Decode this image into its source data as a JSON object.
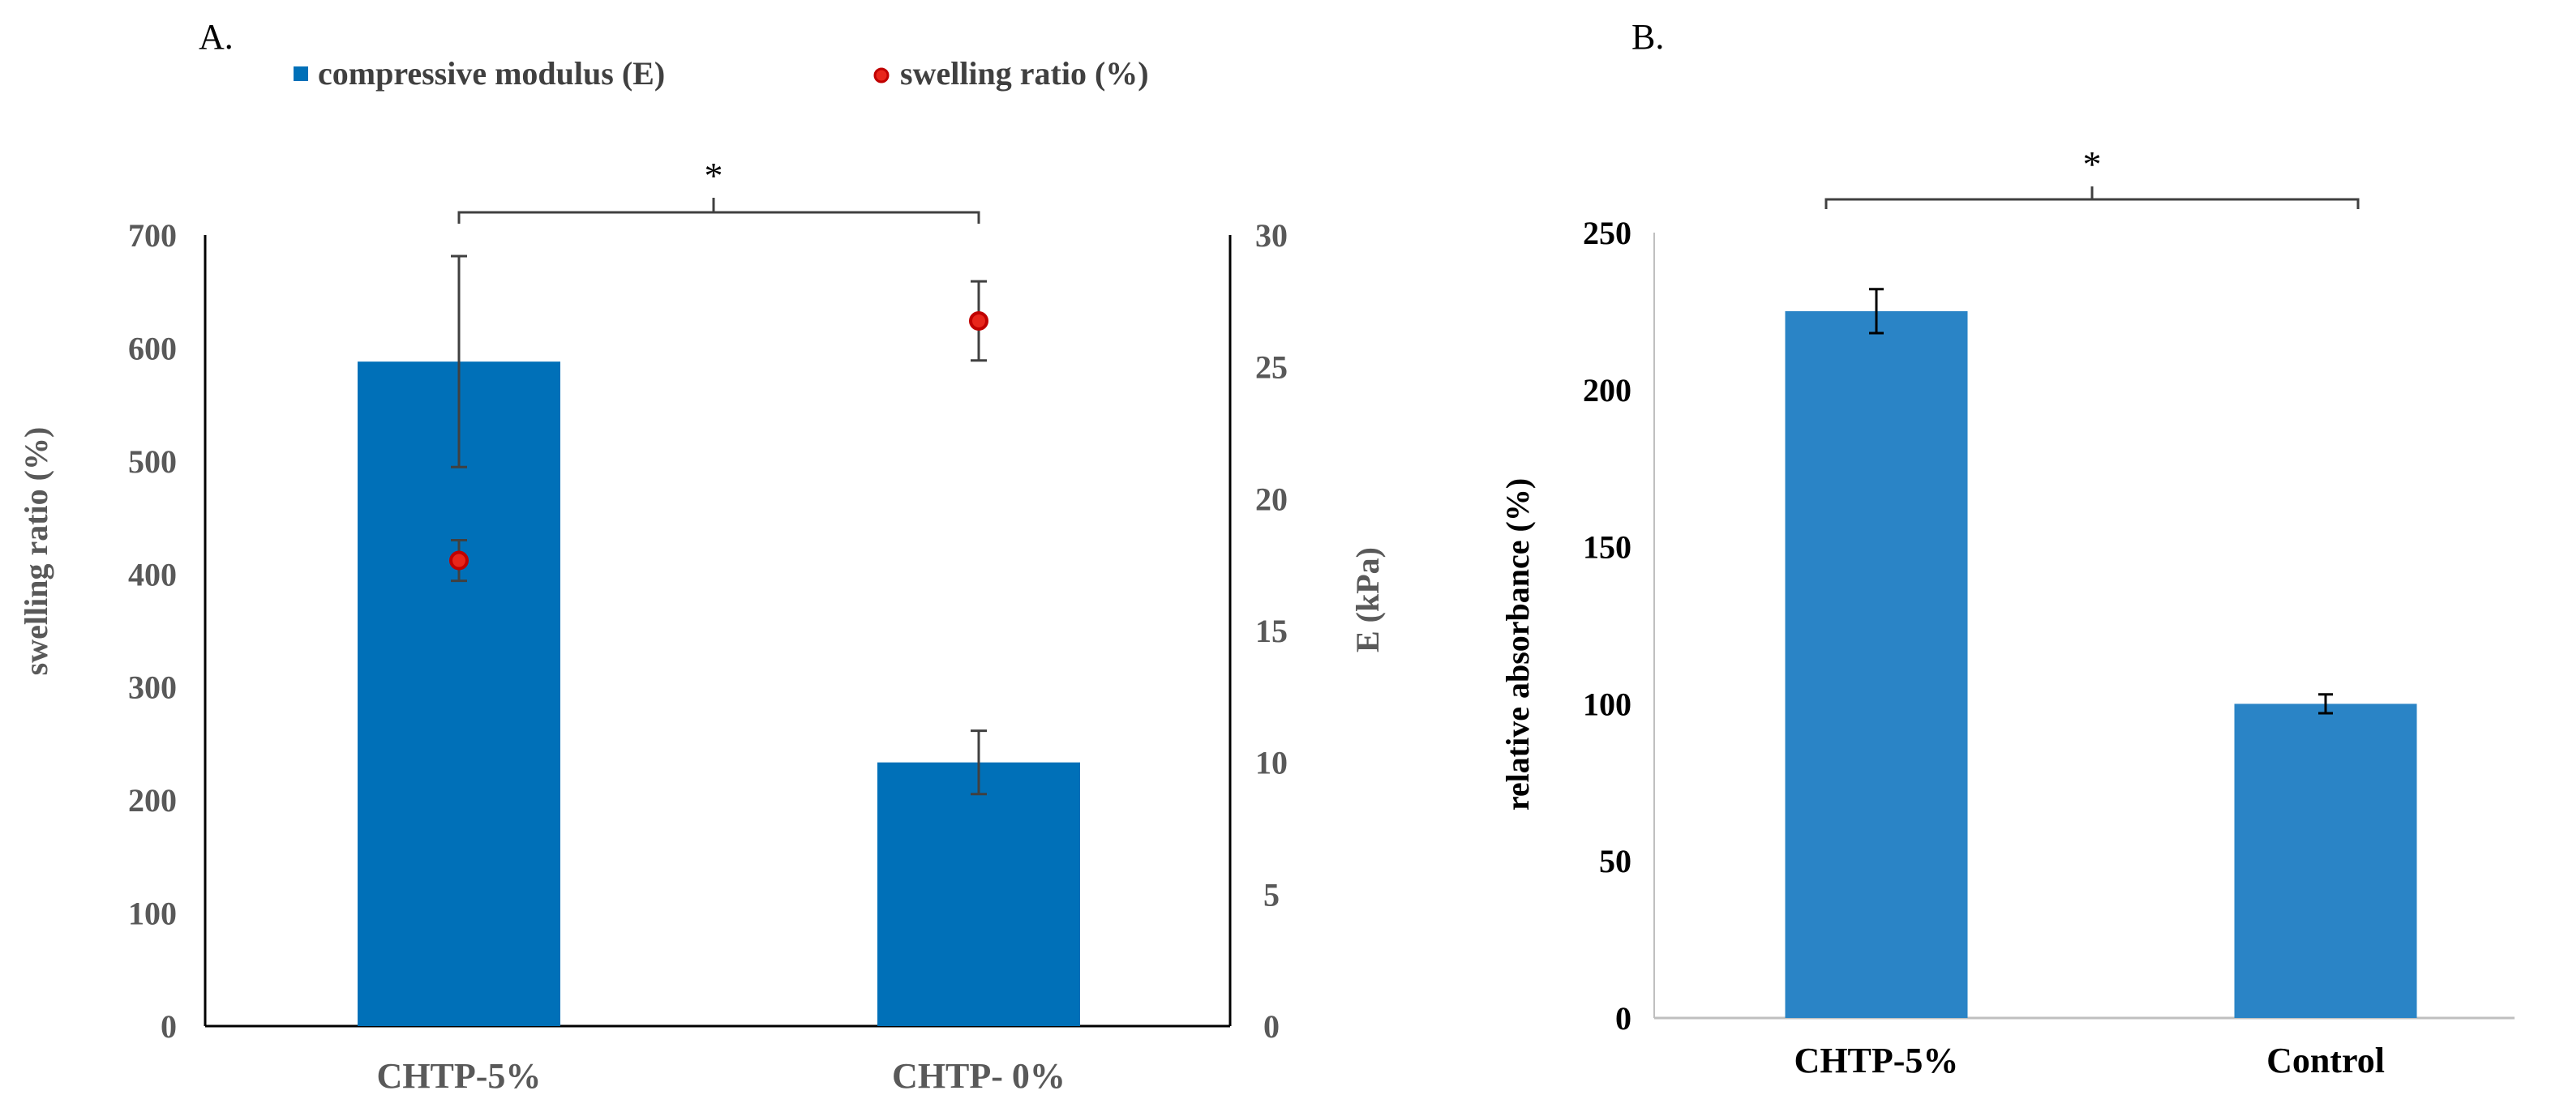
{
  "chart_data": [
    {
      "type": "bar",
      "panel_label": "A.",
      "categories": [
        "CHTP-5%",
        "CHTP- 0%"
      ],
      "series": [
        {
          "name": "compressive modulus (E)",
          "kind": "bar",
          "axis": "right",
          "color": "#0070B8",
          "values": [
            25.2,
            10.0
          ],
          "errors": [
            4.0,
            1.2
          ]
        },
        {
          "name": "swelling ratio (%)",
          "kind": "scatter",
          "axis": "left",
          "color": "#E8261B",
          "values": [
            412,
            624
          ],
          "errors": [
            18,
            35
          ]
        }
      ],
      "ylabel": "swelling ratio (%)",
      "ylim": [
        0,
        700
      ],
      "yticks": [
        "0",
        "100",
        "200",
        "300",
        "400",
        "500",
        "600",
        "700"
      ],
      "y2label": "E (kPa)",
      "y2lim": [
        0,
        30
      ],
      "y2ticks": [
        "0",
        "5",
        "10",
        "15",
        "20",
        "25",
        "30"
      ],
      "legend": "top",
      "significance": "*"
    },
    {
      "type": "bar",
      "panel_label": "B.",
      "categories": [
        "CHTP-5%",
        "Control"
      ],
      "series": [
        {
          "name": "relative absorbance",
          "color": "#2A84C6",
          "values": [
            225,
            100
          ],
          "errors": [
            7,
            3
          ]
        }
      ],
      "ylabel": "relative absorbance  (%)",
      "ylim": [
        0,
        250
      ],
      "yticks": [
        "0",
        "50",
        "100",
        "150",
        "200",
        "250"
      ],
      "significance": "*"
    }
  ]
}
